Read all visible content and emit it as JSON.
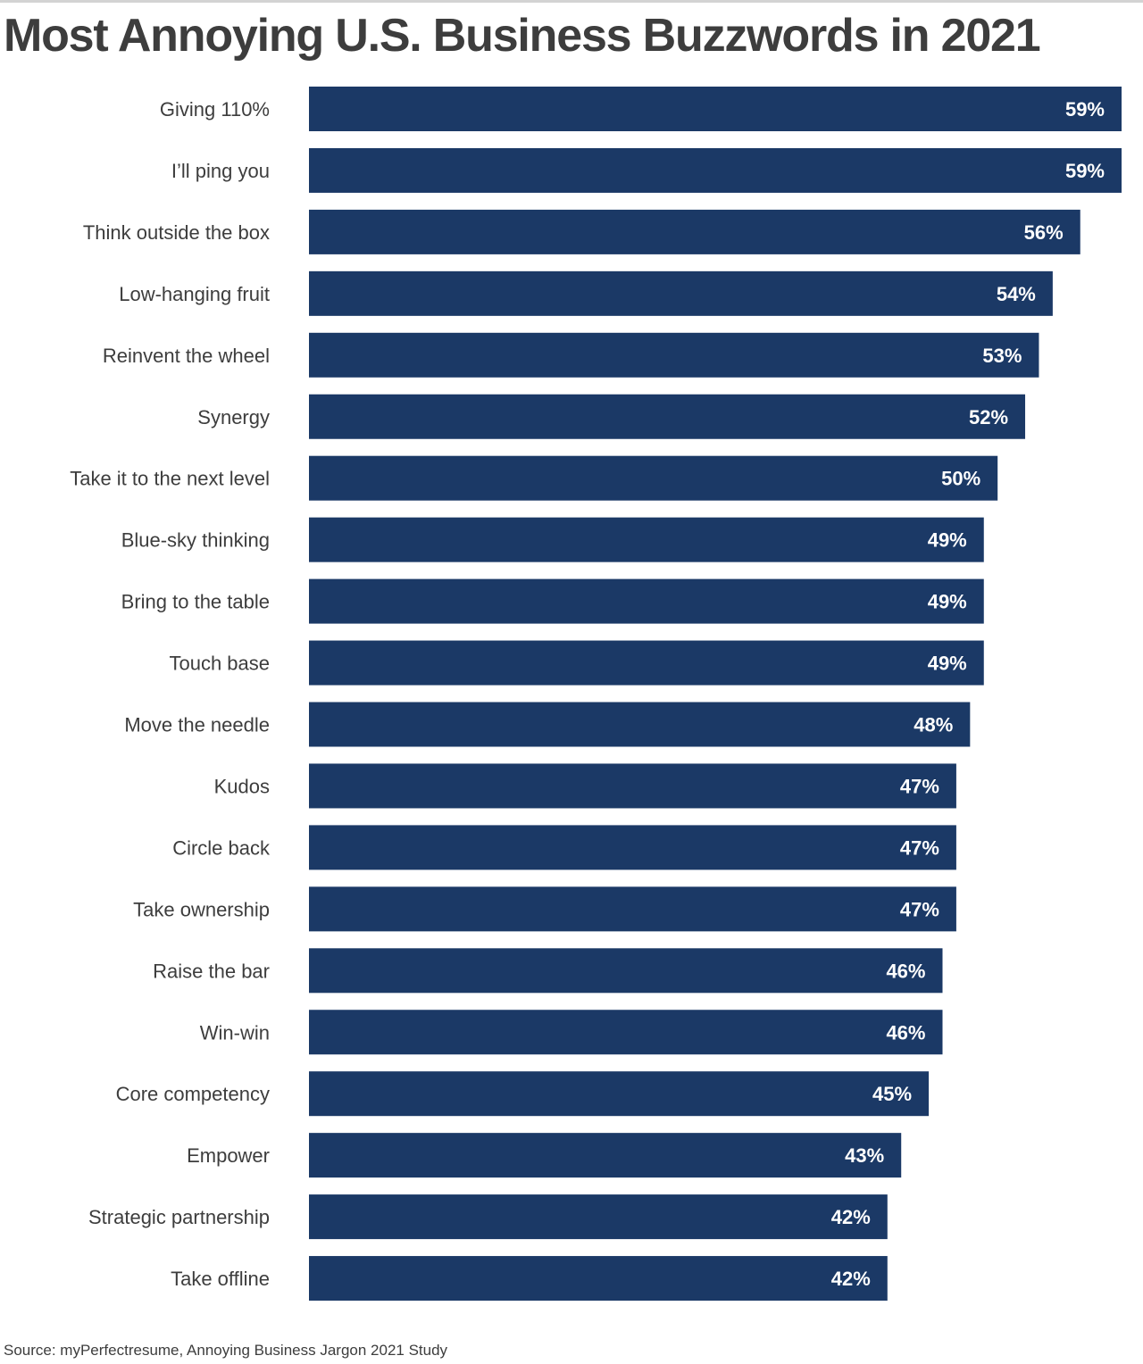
{
  "colors": {
    "bar": "#1b3966",
    "label_text": "#3d3d3d",
    "value_text": "#ffffff",
    "top_rule": "#d3d3d3"
  },
  "chart_data": {
    "type": "bar",
    "orientation": "horizontal",
    "title": "Most Annoying U.S. Business Buzzwords in 2021",
    "xlabel": "",
    "ylabel": "",
    "xlim": [
      0,
      59
    ],
    "grid": false,
    "legend": "none",
    "value_suffix": "%",
    "categories": [
      "Giving 110%",
      "I’ll ping you",
      "Think outside the box",
      "Low-hanging fruit",
      "Reinvent the wheel",
      "Synergy",
      "Take it to the next level",
      "Blue-sky thinking",
      "Bring to the table",
      "Touch base",
      "Move the needle",
      "Kudos",
      "Circle back",
      "Take ownership",
      "Raise the bar",
      "Win-win",
      "Core competency",
      "Empower",
      "Strategic partnership",
      "Take offline"
    ],
    "values": [
      59,
      59,
      56,
      54,
      53,
      52,
      50,
      49,
      49,
      49,
      48,
      47,
      47,
      47,
      46,
      46,
      45,
      43,
      42,
      42
    ],
    "value_labels": [
      "59%",
      "59%",
      "56%",
      "54%",
      "53%",
      "52%",
      "50%",
      "49%",
      "49%",
      "49%",
      "48%",
      "47%",
      "47%",
      "47%",
      "46%",
      "46%",
      "45%",
      "43%",
      "42%",
      "42%"
    ],
    "source": "Source: myPerfectresume, Annoying Business Jargon 2021 Study"
  }
}
